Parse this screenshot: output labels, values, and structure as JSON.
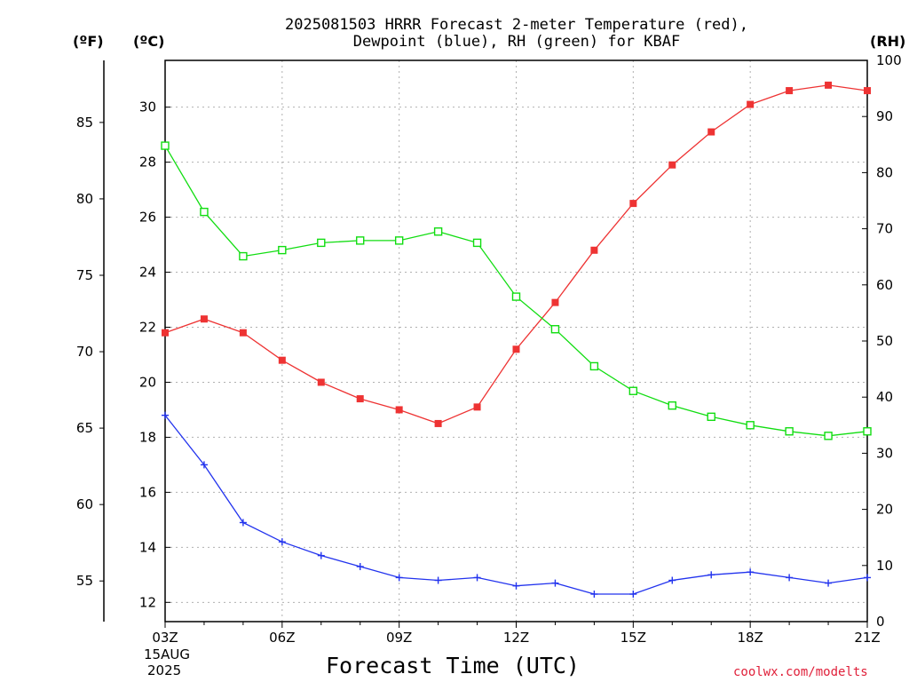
{
  "title": [
    "2025081503 HRRR Forecast 2-meter Temperature (red),",
    "Dewpoint (blue), RH (green) for KBAF"
  ],
  "units": {
    "fahrenheit": "(ºF)",
    "celsius": "(ºC)",
    "rh": "(RH)"
  },
  "xlabel": "Forecast Time (UTC)",
  "date_label": [
    "15AUG",
    "2025"
  ],
  "credit": "coolwx.com/modelts",
  "colors": {
    "temperature": "#ee3333",
    "dewpoint": "#2233ee",
    "rh": "#11dd11",
    "grid": "#b0b0b0"
  },
  "chart_data": {
    "type": "line",
    "x": [
      "03Z",
      "04Z",
      "05Z",
      "06Z",
      "07Z",
      "08Z",
      "09Z",
      "10Z",
      "11Z",
      "12Z",
      "13Z",
      "14Z",
      "15Z",
      "16Z",
      "17Z",
      "18Z",
      "19Z",
      "20Z",
      "21Z"
    ],
    "x_tick_labels": [
      "03Z",
      "06Z",
      "09Z",
      "12Z",
      "15Z",
      "18Z",
      "21Z"
    ],
    "xlim": [
      "03Z",
      "21Z"
    ],
    "left_axis_celsius": {
      "ticks": [
        "12",
        "14",
        "16",
        "18",
        "20",
        "22",
        "24",
        "26",
        "28",
        "30"
      ],
      "ylim": [
        11.3,
        31.7
      ]
    },
    "left_axis_fahrenheit": {
      "ticks": [
        "55",
        "60",
        "65",
        "70",
        "75",
        "80",
        "85"
      ]
    },
    "right_axis_rh": {
      "ticks": [
        "0",
        "10",
        "20",
        "30",
        "40",
        "50",
        "60",
        "70",
        "80",
        "90",
        "100"
      ],
      "ylim": [
        0,
        100
      ]
    },
    "grid": true,
    "series": [
      {
        "axis": "celsius",
        "marker": "filled-square",
        "values": [
          21.8,
          22.3,
          21.8,
          20.8,
          20.0,
          19.4,
          19.0,
          18.5,
          19.1,
          21.2,
          22.9,
          24.8,
          26.5,
          27.9,
          29.1,
          30.1,
          30.6,
          30.8,
          30.6
        ]
      },
      {
        "axis": "celsius",
        "marker": "plus",
        "values": [
          18.8,
          17.0,
          14.9,
          14.2,
          13.7,
          13.3,
          12.9,
          12.8,
          12.9,
          12.6,
          12.7,
          12.3,
          12.3,
          12.8,
          13.0,
          13.1,
          12.9,
          12.7,
          12.9
        ]
      },
      {
        "axis": "rh",
        "marker": "open-square",
        "values": [
          84.8,
          73.0,
          65.1,
          66.2,
          67.5,
          67.9,
          67.9,
          69.5,
          67.5,
          57.9,
          52.1,
          45.5,
          41.1,
          38.5,
          36.5,
          35.0,
          33.9,
          33.1,
          33.9
        ]
      }
    ]
  }
}
